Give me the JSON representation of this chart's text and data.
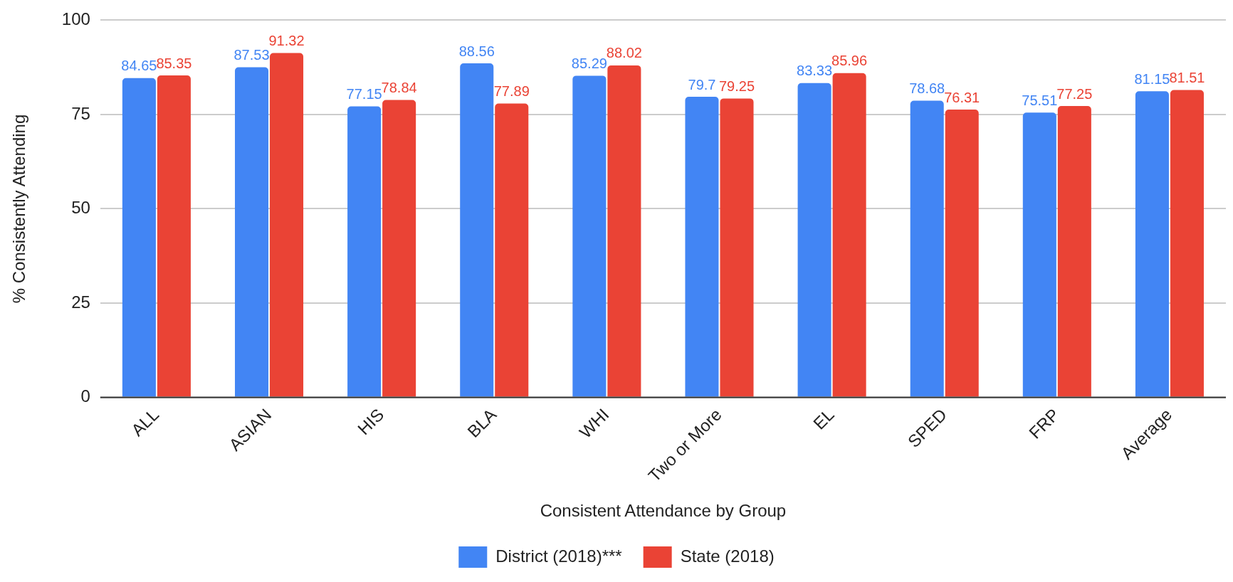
{
  "chart_data": {
    "type": "bar",
    "xlabel": "Consistent Attendance by Group",
    "ylabel": "% Consistently Attending",
    "categories": [
      "ALL",
      "ASIAN",
      "HIS",
      "BLA",
      "WHI",
      "Two or More",
      "EL",
      "SPED",
      "FRP",
      "Average"
    ],
    "series": [
      {
        "name": "District (2018)***",
        "color": "#4285f4",
        "values": [
          84.65,
          87.53,
          77.15,
          88.56,
          85.29,
          79.7,
          83.33,
          78.68,
          75.51,
          81.15
        ]
      },
      {
        "name": "State (2018)",
        "color": "#ea4335",
        "values": [
          85.35,
          91.32,
          78.84,
          77.89,
          88.02,
          79.25,
          85.96,
          76.31,
          77.25,
          81.51
        ]
      }
    ],
    "ylim": [
      0,
      100
    ],
    "yticks": [
      0,
      25,
      50,
      75,
      100
    ],
    "grid": "y",
    "legend": "bottom",
    "data_labels": true
  }
}
